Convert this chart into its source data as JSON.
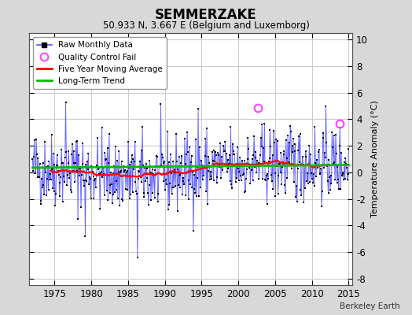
{
  "title": "SEMMERZAKE",
  "subtitle": "50.933 N, 3.667 E (Belgium and Luxemborg)",
  "ylabel": "Temperature Anomaly (°C)",
  "credit": "Berkeley Earth",
  "xlim": [
    1971.5,
    2015.5
  ],
  "ylim": [
    -8.5,
    10.5
  ],
  "yticks": [
    -8,
    -6,
    -4,
    -2,
    0,
    2,
    4,
    6,
    8,
    10
  ],
  "xticks": [
    1975,
    1980,
    1985,
    1990,
    1995,
    2000,
    2005,
    2010,
    2015
  ],
  "fig_bg_color": "#d8d8d8",
  "plot_bg_color": "#ffffff",
  "grid_color": "#cccccc",
  "line_color": "#5555ff",
  "dot_color": "#000000",
  "ma_color": "#ff0000",
  "trend_color": "#00bb00",
  "qc_color": "#ff44ff",
  "seed": 42,
  "n_months": 516,
  "start_year": 1972.0,
  "qc_points": [
    [
      2002.7,
      4.85
    ],
    [
      2013.8,
      3.65
    ]
  ],
  "trend_y0": 0.35,
  "trend_y1": 0.55
}
